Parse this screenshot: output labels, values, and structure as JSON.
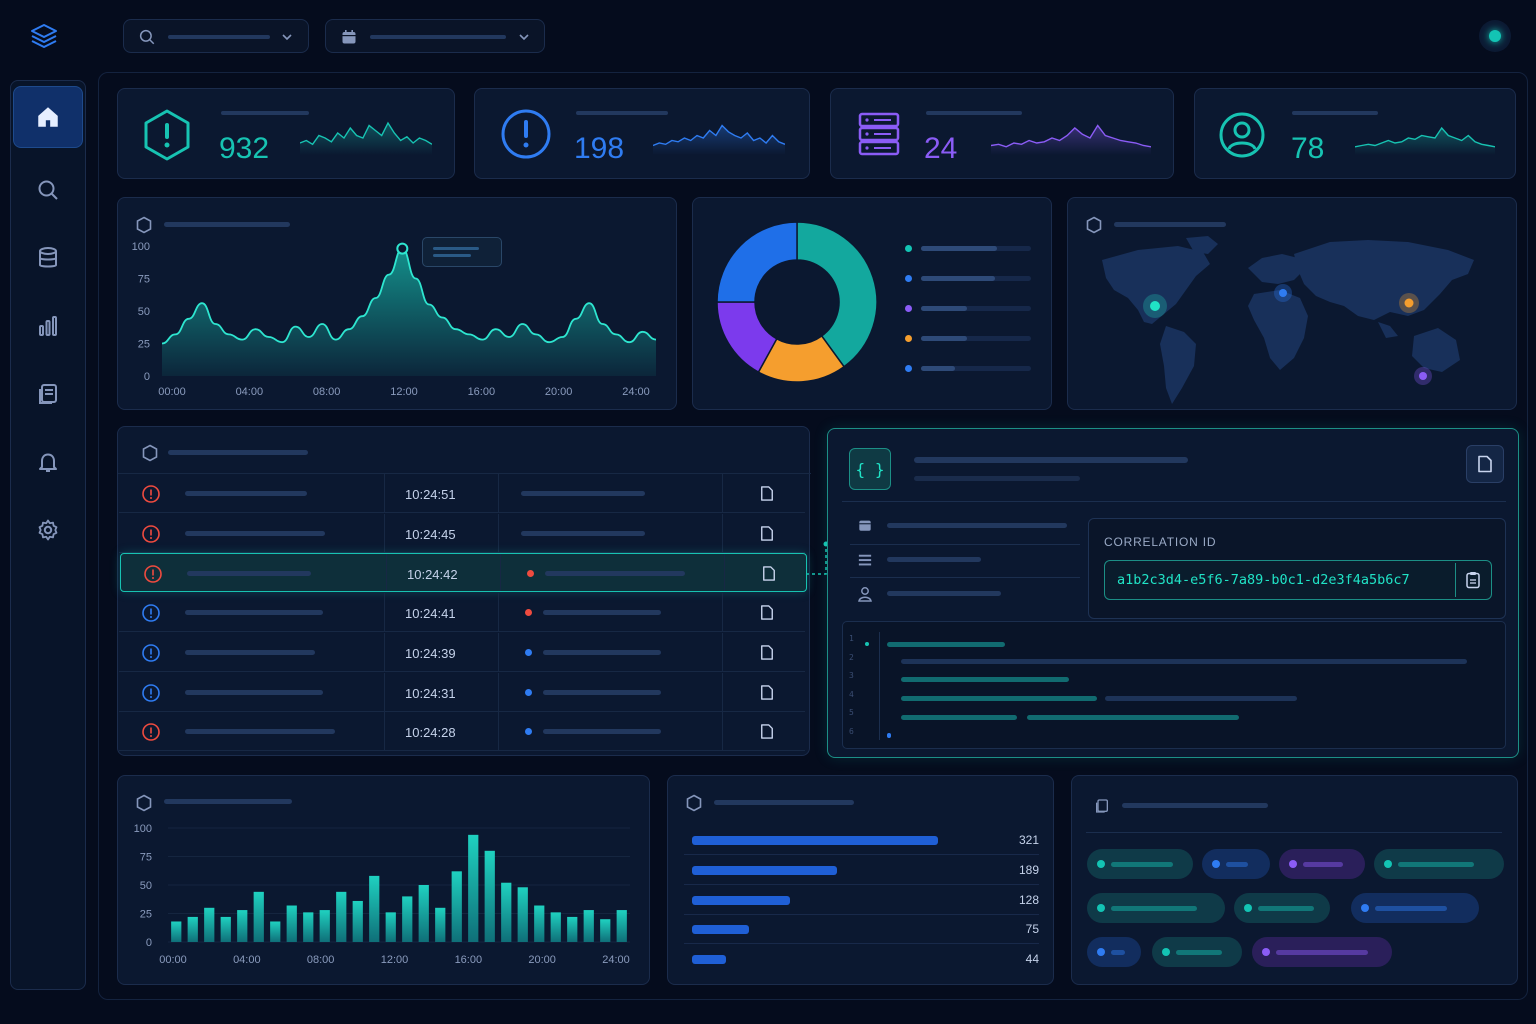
{
  "header": {
    "search_icon": "search-icon",
    "date_icon": "calendar-icon",
    "status_color": "#13c4b4"
  },
  "sidebar": {
    "items": [
      {
        "icon": "home-icon",
        "active": true
      },
      {
        "icon": "search-icon"
      },
      {
        "icon": "database-icon"
      },
      {
        "icon": "bar-chart-icon"
      },
      {
        "icon": "documents-icon"
      },
      {
        "icon": "bell-icon"
      },
      {
        "icon": "gear-icon"
      }
    ]
  },
  "stats": [
    {
      "icon": "alert-hexagon-icon",
      "value": "932",
      "color": "#17c3b2"
    },
    {
      "icon": "alert-circle-icon",
      "value": "198",
      "color": "#2f7cf2"
    },
    {
      "icon": "server-icon",
      "value": "24",
      "color": "#8b5cf6"
    },
    {
      "icon": "user-icon",
      "value": "78",
      "color": "#17c3b2"
    }
  ],
  "area_chart": {
    "chart_data": {
      "type": "area",
      "x_ticks": [
        "00:00",
        "04:00",
        "08:00",
        "12:00",
        "16:00",
        "20:00",
        "24:00"
      ],
      "y_ticks": [
        "0",
        "25",
        "50",
        "75",
        "100"
      ],
      "ylim": [
        0,
        100
      ],
      "values": [
        25,
        32,
        44,
        56,
        40,
        32,
        28,
        36,
        30,
        26,
        38,
        30,
        40,
        28,
        36,
        46,
        60,
        78,
        98,
        75,
        55,
        45,
        36,
        32,
        28,
        36,
        30,
        40,
        32,
        26,
        30,
        44,
        56,
        40,
        32,
        26,
        34,
        28
      ],
      "color": "#17c3b2"
    }
  },
  "donut": {
    "chart_data": {
      "type": "pie",
      "values": [
        40,
        18,
        17,
        25
      ],
      "colors": [
        "#13a89e",
        "#f59e2e",
        "#7c3aed",
        "#1f6fe8"
      ]
    },
    "legend_colors": [
      "#13c4b4",
      "#2f7cf2",
      "#8b5cf6",
      "#f59e2e",
      "#2f7cf2"
    ]
  },
  "map": {
    "points": [
      {
        "name": "north-america",
        "color": "#20e3c6"
      },
      {
        "name": "europe",
        "color": "#2f7cf2"
      },
      {
        "name": "east-asia",
        "color": "#f59e2e"
      },
      {
        "name": "australia",
        "color": "#8b5cf6"
      }
    ]
  },
  "events": {
    "rows": [
      {
        "time": "10:24:51",
        "severity": "critical",
        "dot": ""
      },
      {
        "time": "10:24:45",
        "severity": "critical",
        "dot": ""
      },
      {
        "time": "10:24:42",
        "severity": "critical",
        "dot": "#ef4b3f",
        "selected": true
      },
      {
        "time": "10:24:41",
        "severity": "info",
        "dot": "#ef4b3f"
      },
      {
        "time": "10:24:39",
        "severity": "info",
        "dot": "#2f7cf2"
      },
      {
        "time": "10:24:31",
        "severity": "info",
        "dot": "#2f7cf2"
      },
      {
        "time": "10:24:28",
        "severity": "critical",
        "dot": "#2f7cf2"
      }
    ]
  },
  "detail": {
    "json_icon": "{ }",
    "correlation_label": "CORRELATION ID",
    "correlation_id": "a1b2c3d4-e5f6-7a89-b0c1-d2e3f4a5b6c7",
    "line_numbers": [
      "1",
      "2",
      "3",
      "4",
      "5",
      "6"
    ]
  },
  "bar_chart": {
    "chart_data": {
      "type": "bar",
      "x_ticks": [
        "00:00",
        "04:00",
        "08:00",
        "12:00",
        "16:00",
        "20:00",
        "24:00"
      ],
      "y_ticks": [
        "0",
        "25",
        "50",
        "75",
        "100"
      ],
      "ylim": [
        0,
        100
      ],
      "values": [
        18,
        22,
        30,
        22,
        28,
        44,
        18,
        32,
        26,
        28,
        44,
        36,
        58,
        26,
        40,
        50,
        30,
        62,
        94,
        80,
        52,
        48,
        32,
        26,
        22,
        28,
        20,
        28
      ],
      "color": "#17b4aa"
    }
  },
  "hbar_chart": {
    "chart_data": {
      "type": "bar",
      "orientation": "horizontal",
      "values": [
        321,
        189,
        128,
        75,
        44
      ],
      "labels": [
        "321",
        "189",
        "128",
        "75",
        "44"
      ],
      "color": "#1f5fd6"
    }
  },
  "tags": [
    {
      "color": "#13c4b4"
    },
    {
      "color": "#2f7cf2"
    },
    {
      "color": "#8b5cf6"
    },
    {
      "color": "#13c4b4"
    },
    {
      "color": "#13c4b4"
    },
    {
      "color": "#13c4b4"
    },
    {
      "color": "#2f7cf2"
    },
    {
      "color": "#2f7cf2"
    },
    {
      "color": "#13c4b4"
    },
    {
      "color": "#8b5cf6"
    }
  ]
}
